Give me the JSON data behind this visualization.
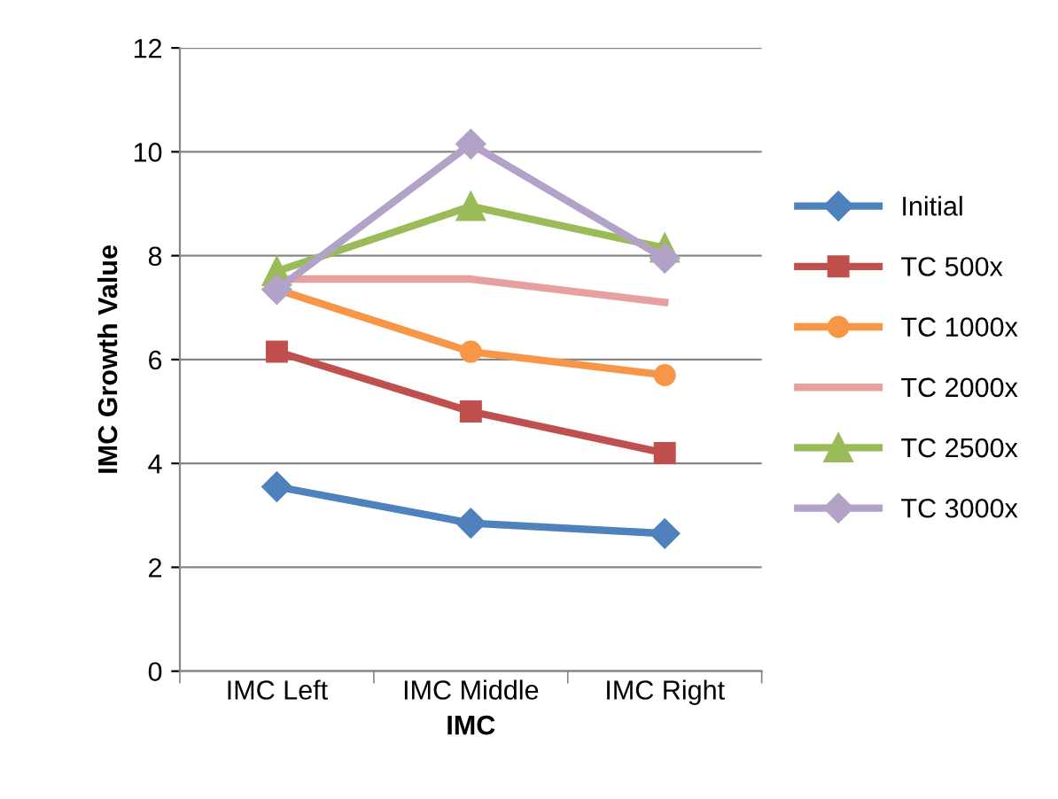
{
  "chart_data": {
    "type": "line",
    "xlabel": "IMC",
    "ylabel": "IMC Growth Value",
    "categories": [
      "IMC Left",
      "IMC Middle",
      "IMC Right"
    ],
    "series": [
      {
        "name": "Initial",
        "color": "#4f81bd",
        "marker": "diamond",
        "values": [
          3.55,
          2.85,
          2.65
        ]
      },
      {
        "name": "TC 500x",
        "color": "#c0504d",
        "marker": "square",
        "values": [
          6.15,
          5.0,
          4.2
        ]
      },
      {
        "name": "TC 1000x",
        "color": "#f79646",
        "marker": "circle",
        "values": [
          7.35,
          6.15,
          5.7
        ]
      },
      {
        "name": "TC 2000x",
        "color": "#e6a0a0",
        "marker": "none",
        "values": [
          7.55,
          7.55,
          7.1
        ]
      },
      {
        "name": "TC 2500x",
        "color": "#9bbb59",
        "marker": "triangle",
        "values": [
          7.7,
          8.95,
          8.15
        ]
      },
      {
        "name": "TC 3000x",
        "color": "#b3a2c7",
        "marker": "diamond",
        "values": [
          7.35,
          10.15,
          7.95
        ]
      }
    ],
    "ylim": [
      0,
      12
    ],
    "yticks": [
      0,
      2,
      4,
      6,
      8,
      10,
      12
    ],
    "grid": "y",
    "legend": "right"
  }
}
